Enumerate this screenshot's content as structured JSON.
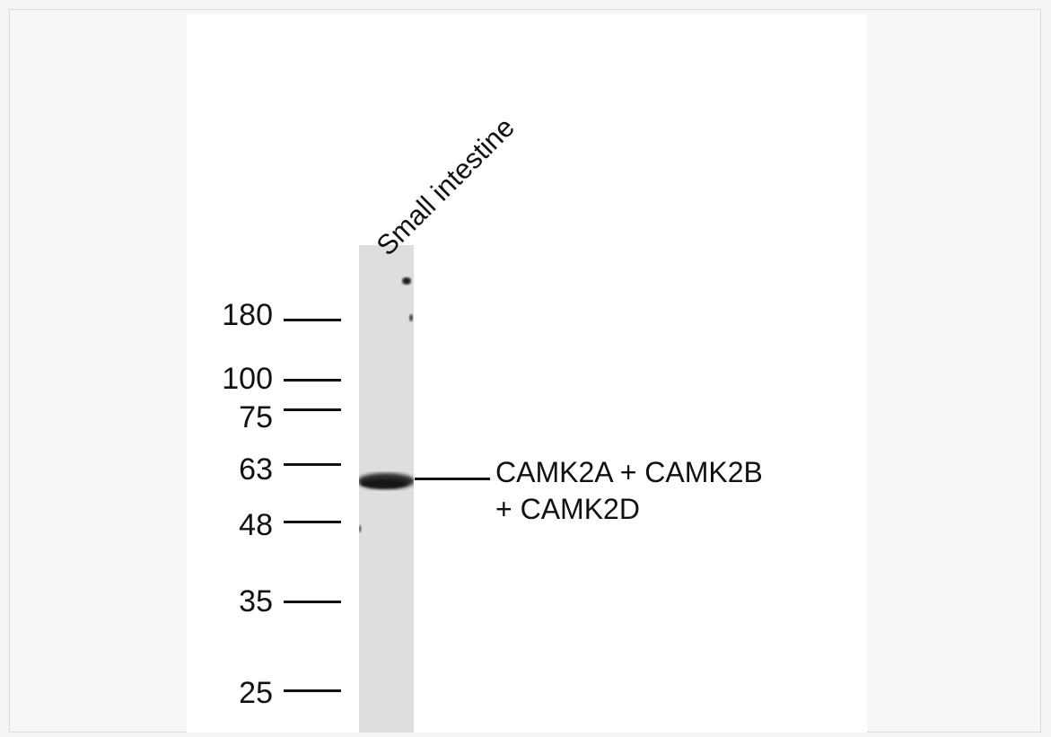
{
  "lane_label": "Small intestine",
  "markers": [
    {
      "label": "180",
      "kda": 180
    },
    {
      "label": "100",
      "kda": 100
    },
    {
      "label": "75",
      "kda": 75
    },
    {
      "label": "63",
      "kda": 63
    },
    {
      "label": "48",
      "kda": 48
    },
    {
      "label": "35",
      "kda": 35
    },
    {
      "label": "25",
      "kda": 25
    }
  ],
  "band": {
    "line1": "CAMK2A + CAMK2B",
    "line2": "+ CAMK2D"
  }
}
